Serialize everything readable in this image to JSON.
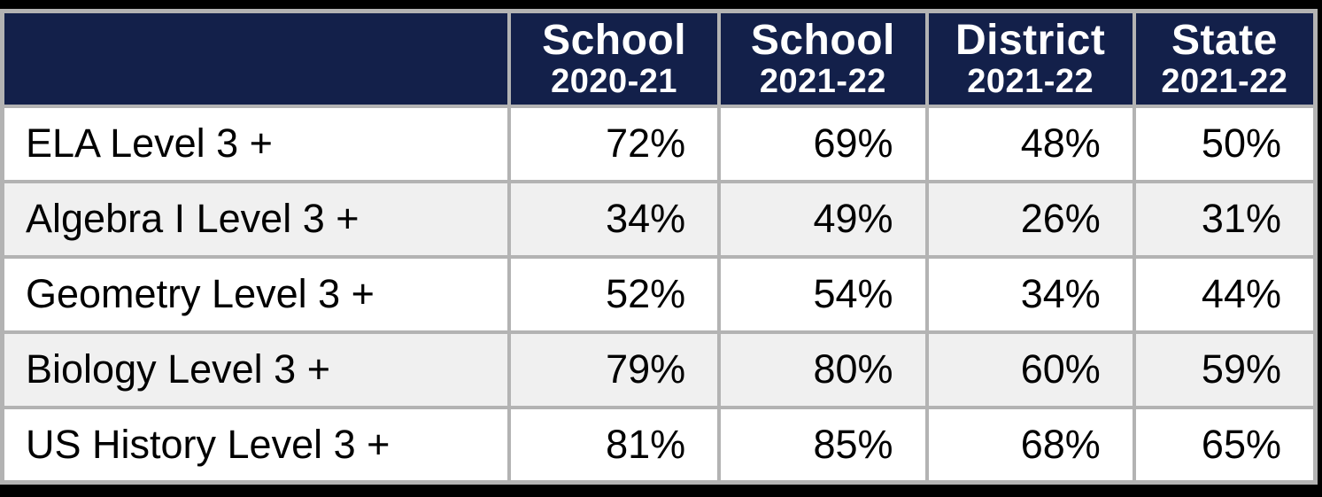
{
  "colors": {
    "frame_bg": "#000000",
    "header_bg": "#13204a",
    "header_text": "#ffffff",
    "grid_border": "#b3b3b3",
    "row_white_bg": "#ffffff",
    "row_shaded_bg": "#f0f0f0",
    "body_text": "#000000"
  },
  "chart_data": {
    "type": "table",
    "columns": [
      {
        "label": "School",
        "sublabel": "2020-21"
      },
      {
        "label": "School",
        "sublabel": "2021-22"
      },
      {
        "label": "District",
        "sublabel": "2021-22"
      },
      {
        "label": "State",
        "sublabel": "2021-22"
      }
    ],
    "rows": [
      {
        "label": "ELA Level 3 +",
        "values": [
          "72%",
          "69%",
          "48%",
          "50%"
        ]
      },
      {
        "label": "Algebra I Level 3 +",
        "values": [
          "34%",
          "49%",
          "26%",
          "31%"
        ]
      },
      {
        "label": "Geometry Level 3 +",
        "values": [
          "52%",
          "54%",
          "34%",
          "44%"
        ]
      },
      {
        "label": "Biology Level 3 +",
        "values": [
          "79%",
          "80%",
          "60%",
          "59%"
        ]
      },
      {
        "label": "US History Level 3 +",
        "values": [
          "81%",
          "85%",
          "68%",
          "65%"
        ]
      }
    ]
  }
}
